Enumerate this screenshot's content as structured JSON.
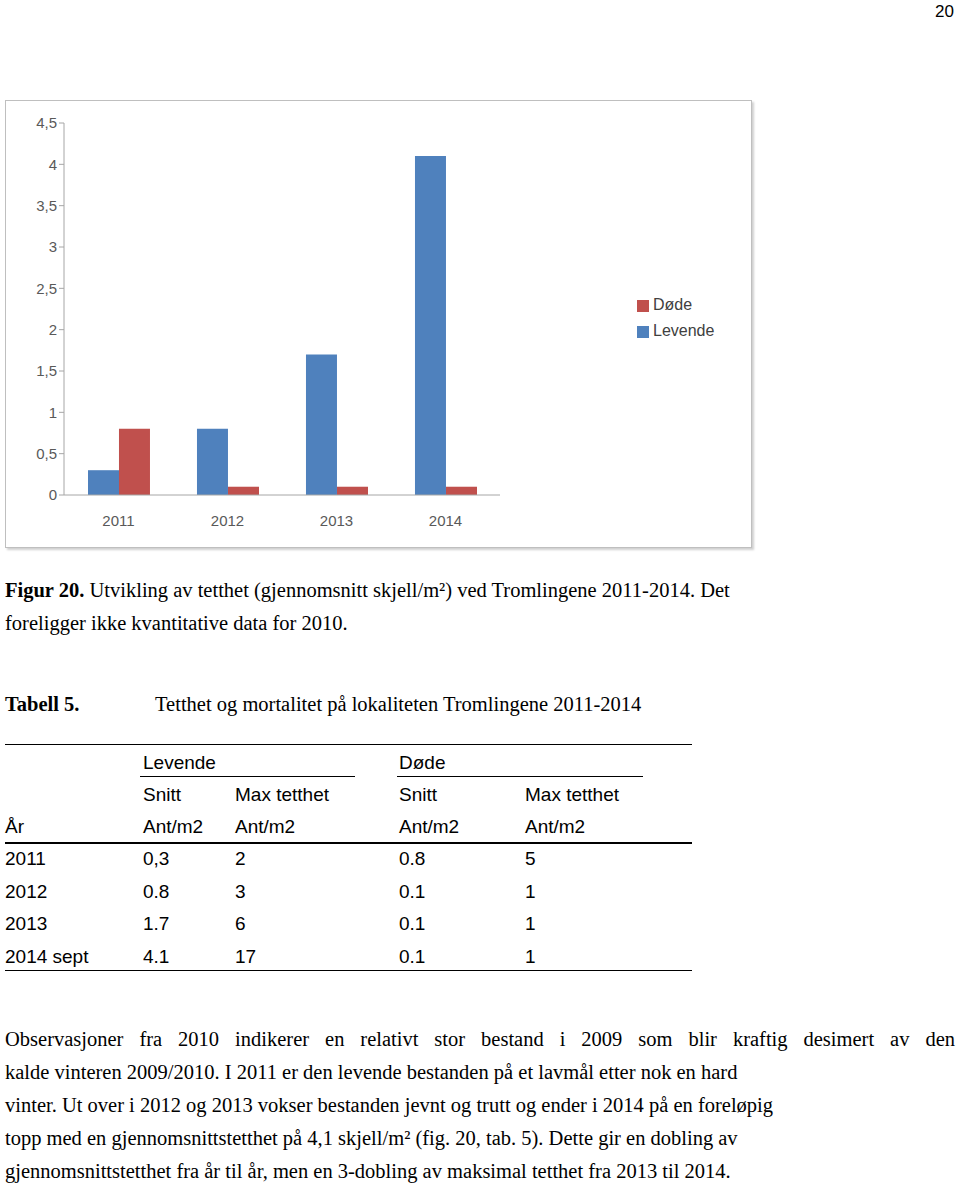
{
  "page_number": "20",
  "chart_data": {
    "type": "bar",
    "categories": [
      "2011",
      "2012",
      "2013",
      "2014"
    ],
    "series": [
      {
        "name": "Levende",
        "color": "#4f81bd",
        "values": [
          0.3,
          0.8,
          1.7,
          4.1
        ]
      },
      {
        "name": "Døde",
        "color": "#c0504d",
        "values": [
          0.8,
          0.1,
          0.1,
          0.1
        ]
      }
    ],
    "ylim": [
      0,
      4.5
    ],
    "yticks": [
      0,
      {
        "value": 0.5,
        "label": "0,5"
      },
      1,
      {
        "value": 1.5,
        "label": "1,5"
      },
      2,
      {
        "value": 2.5,
        "label": "2,5"
      },
      3,
      {
        "value": 3.5,
        "label": "3,5"
      },
      4,
      {
        "value": 4.5,
        "label": "4,5"
      }
    ],
    "grid": false,
    "legend": "right"
  },
  "caption": {
    "label": "Figur 20.",
    "lines": [
      " Utvikling av tetthet (gjennomsnitt skjell/m²) ved Tromlingene 2011-2014. Det",
      "foreligger ikke kvantitative data for 2010."
    ]
  },
  "table": {
    "label": "Tabell 5.",
    "title": "Tetthet og mortalitet på lokaliteten Tromlingene 2011-2014",
    "groups": [
      "Levende",
      "Døde"
    ],
    "subheaders": [
      "Snitt",
      "Max tetthet",
      "Snitt",
      "Max tetthet"
    ],
    "units": [
      "År",
      "Ant/m2",
      "Ant/m2",
      "Ant/m2",
      "Ant/m2"
    ],
    "rows": [
      [
        "2011",
        "0,3",
        "2",
        "0.8",
        "5"
      ],
      [
        "2012",
        "0.8",
        "3",
        "0.1",
        "1"
      ],
      [
        "2013",
        "1.7",
        "6",
        "0.1",
        "1"
      ],
      [
        "2014 sept",
        "4.1",
        "17",
        "0.1",
        "1"
      ]
    ]
  },
  "paragraph": [
    "Observasjoner fra 2010 indikerer en relativt stor bestand i 2009 som blir kraftig desimert av den",
    "kalde vinteren 2009/2010. I 2011 er den levende bestanden på et lavmål etter nok en hard",
    "vinter. Ut over i 2012 og 2013 vokser bestanden jevnt og trutt og ender i 2014 på en foreløpig",
    "topp med en gjennomsnittstetthet på 4,1 skjell/m² (fig. 20, tab. 5). Dette gir en dobling av",
    "gjennomsnittstetthet fra år til år, men en 3-dobling av maksimal tetthet fra 2013 til 2014."
  ]
}
